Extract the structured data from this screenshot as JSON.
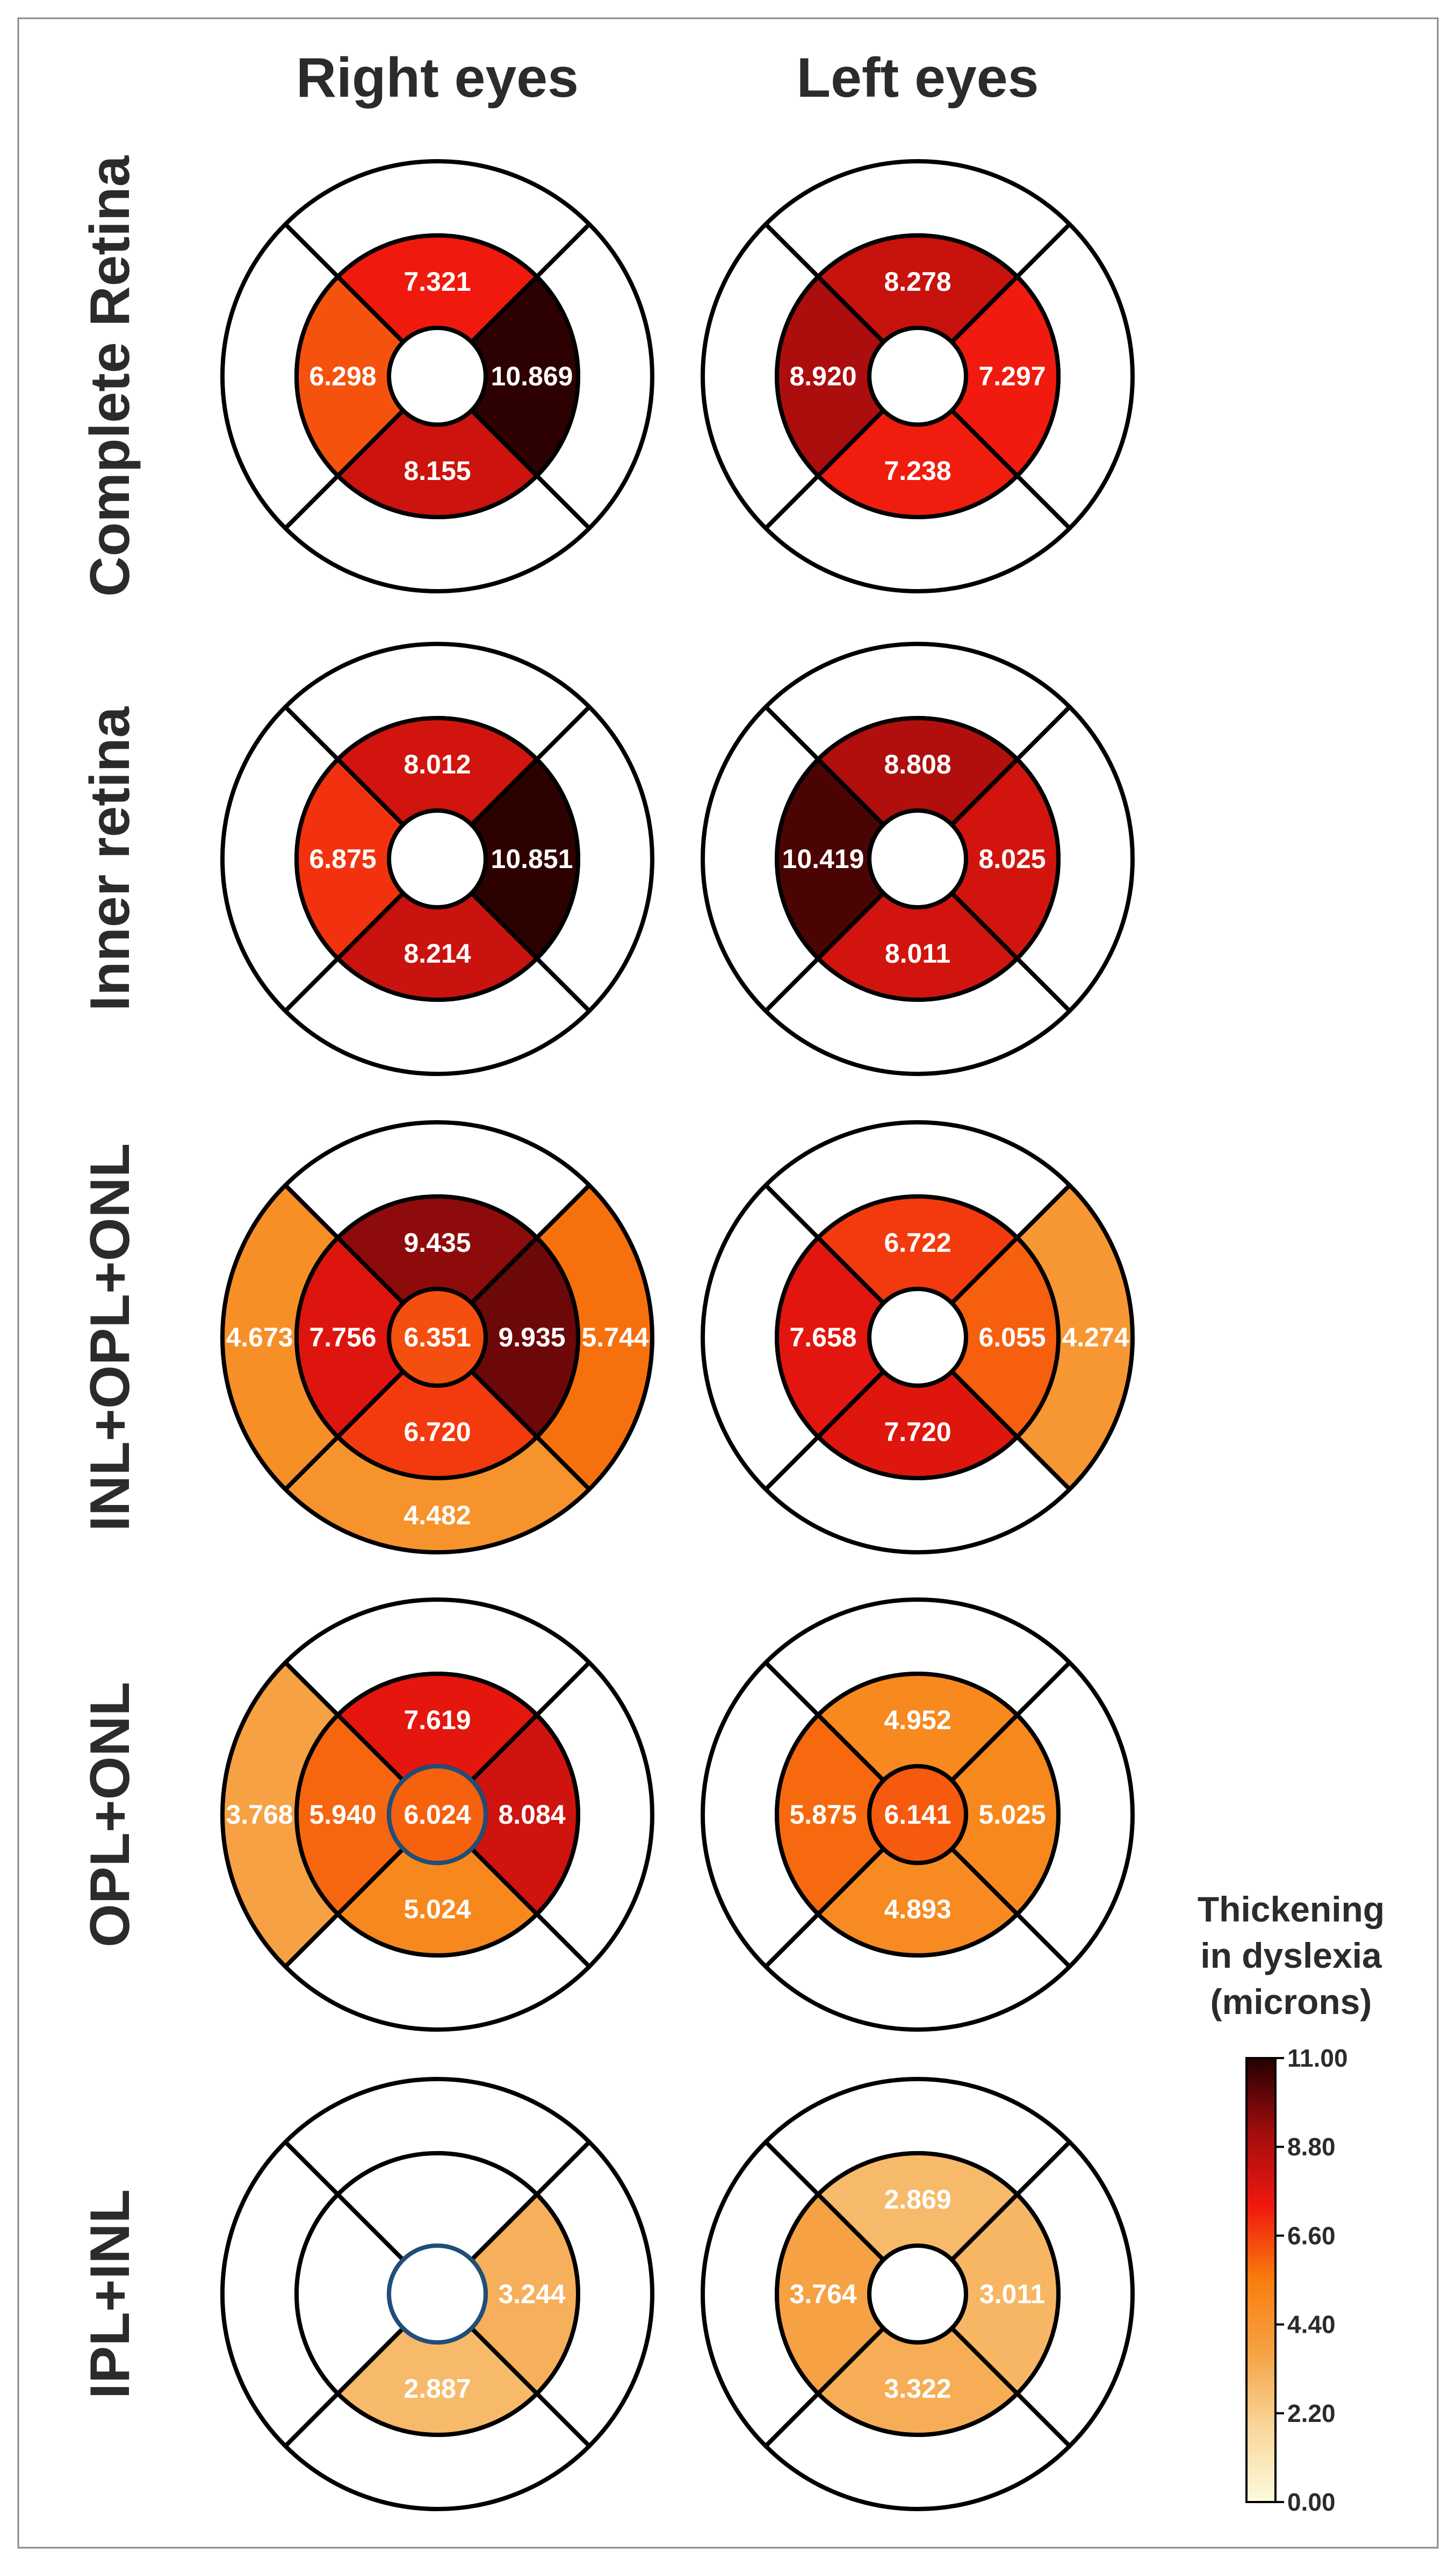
{
  "chart_data": {
    "type": "heatmap",
    "subtype": "ETDRS macular grid maps",
    "column_titles": [
      "Right eyes",
      "Left eyes"
    ],
    "row_titles": [
      "Complete Retina",
      "Inner retina",
      "INL+OPL+ONL",
      "OPL+ONL",
      "IPL+INL"
    ],
    "colorbar": {
      "title_lines": [
        "Thickening",
        "in dyslexia",
        "(microns)"
      ],
      "min": 0.0,
      "max": 11.0,
      "ticks": [
        0.0,
        2.2,
        4.4,
        6.6,
        8.8,
        11.0
      ],
      "tick_labels": [
        "0.00",
        "2.20",
        "4.40",
        "6.60",
        "8.80",
        "11.00"
      ],
      "colormap": [
        "#fdfbdc",
        "#f8d79b",
        "#f6a346",
        "#f87e0e",
        "#f0180e",
        "#a00d0d",
        "#240000"
      ]
    },
    "region_order": [
      "center",
      "inner_superior",
      "inner_nasal",
      "inner_inferior",
      "inner_temporal",
      "outer_superior",
      "outer_nasal",
      "outer_inferior",
      "outer_temporal"
    ],
    "maps": [
      {
        "row": "Complete Retina",
        "eye": "Right eyes",
        "values": {
          "inner_superior": 7.321,
          "inner_temporal": 6.298,
          "inner_nasal": 10.869,
          "inner_inferior": 8.155
        }
      },
      {
        "row": "Complete Retina",
        "eye": "Left eyes",
        "values": {
          "inner_superior": 8.278,
          "inner_temporal": 8.92,
          "inner_nasal": 7.297,
          "inner_inferior": 7.238
        }
      },
      {
        "row": "Inner retina",
        "eye": "Right eyes",
        "values": {
          "inner_superior": 8.012,
          "inner_temporal": 6.875,
          "inner_nasal": 10.851,
          "inner_inferior": 8.214
        }
      },
      {
        "row": "Inner retina",
        "eye": "Left eyes",
        "values": {
          "inner_superior": 8.808,
          "inner_temporal": 10.419,
          "inner_nasal": 8.025,
          "inner_inferior": 8.011
        }
      },
      {
        "row": "INL+OPL+ONL",
        "eye": "Right eyes",
        "values": {
          "center": 6.351,
          "inner_superior": 9.435,
          "inner_temporal": 7.756,
          "inner_nasal": 9.935,
          "inner_inferior": 6.72,
          "outer_temporal": 4.673,
          "outer_nasal": 5.744,
          "outer_inferior": 4.482
        }
      },
      {
        "row": "INL+OPL+ONL",
        "eye": "Left eyes",
        "values": {
          "inner_superior": 6.722,
          "inner_temporal": 7.658,
          "inner_nasal": 6.055,
          "inner_inferior": 7.72,
          "outer_nasal": 4.274
        }
      },
      {
        "row": "OPL+ONL",
        "eye": "Right eyes",
        "values": {
          "center": 6.024,
          "inner_superior": 7.619,
          "inner_temporal": 5.94,
          "inner_nasal": 8.084,
          "inner_inferior": 5.024,
          "outer_temporal": 3.768
        }
      },
      {
        "row": "OPL+ONL",
        "eye": "Left eyes",
        "values": {
          "center": 6.141,
          "inner_superior": 4.952,
          "inner_temporal": 5.875,
          "inner_nasal": 5.025,
          "inner_inferior": 4.893
        }
      },
      {
        "row": "IPL+INL",
        "eye": "Right eyes",
        "values": {
          "inner_nasal": 3.244,
          "inner_inferior": 2.887
        }
      },
      {
        "row": "IPL+INL",
        "eye": "Left eyes",
        "values": {
          "inner_superior": 2.869,
          "inner_temporal": 3.764,
          "inner_nasal": 3.011,
          "inner_inferior": 3.322
        }
      }
    ],
    "value_labels": [
      [
        "",
        "7.321",
        "10.869",
        "8.155",
        "6.298",
        "",
        "",
        "",
        ""
      ],
      [
        "",
        "8.278",
        "7.297",
        "7.238",
        "8.920",
        "",
        "",
        "",
        ""
      ],
      [
        "",
        "8.012",
        "10.851",
        "8.214",
        "6.875",
        "",
        "",
        "",
        ""
      ],
      [
        "",
        "8.808",
        "8.025",
        "8.011",
        "10.419",
        "",
        "",
        "",
        ""
      ],
      [
        "6.351",
        "9.435",
        "9.935",
        "6.720",
        "7.756",
        "",
        "5.744",
        "4.482",
        "4.673"
      ],
      [
        "",
        "6.722",
        "6.055",
        "7.720",
        "7.658",
        "",
        "4.274",
        "",
        ""
      ],
      [
        "6.024",
        "7.619",
        "8.084",
        "5.024",
        "5.940",
        "",
        "",
        "",
        "3.768"
      ],
      [
        "6.141",
        "4.952",
        "5.025",
        "4.893",
        "5.875",
        "",
        "",
        "",
        ""
      ],
      [
        "",
        "",
        "3.244",
        "2.887",
        "",
        "",
        "",
        "",
        ""
      ],
      [
        "",
        "2.869",
        "3.011",
        "3.322",
        "3.764",
        "",
        "",
        "",
        ""
      ]
    ]
  }
}
